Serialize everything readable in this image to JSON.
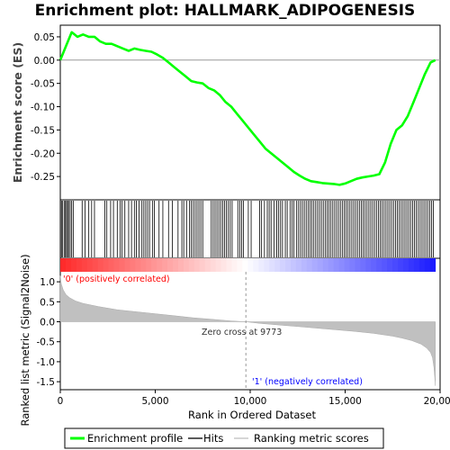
{
  "chart_data": {
    "type": "line",
    "title": "Enrichment plot: HALLMARK_ADIPOGENESIS",
    "xlabel": "Rank in Ordered Dataset",
    "xlim": [
      0,
      20000
    ],
    "x_ticks": [
      0,
      5000,
      10000,
      15000,
      20000
    ],
    "x_tick_labels": [
      "0",
      "5,000",
      "10,000",
      "15,000",
      "20,000"
    ],
    "top_panel": {
      "ylabel": "Enrichment score (ES)",
      "ylim": [
        -0.3,
        0.075
      ],
      "y_ticks": [
        0.05,
        0.0,
        -0.05,
        -0.1,
        -0.15,
        -0.2,
        -0.25
      ],
      "y_tick_labels": [
        "0.05",
        "0.00",
        "-0.05",
        "-0.10",
        "-0.15",
        "-0.20",
        "-0.25"
      ],
      "series": [
        {
          "name": "Enrichment profile",
          "color": "#00ff00",
          "x": [
            0,
            300,
            600,
            900,
            1200,
            1500,
            1800,
            2100,
            2400,
            2700,
            3000,
            3300,
            3600,
            3900,
            4200,
            4500,
            4800,
            5100,
            5400,
            5700,
            6000,
            6300,
            6600,
            6900,
            7200,
            7500,
            7800,
            8100,
            8400,
            8700,
            9000,
            9300,
            9600,
            9900,
            10200,
            10500,
            10800,
            11100,
            11400,
            11700,
            12000,
            12300,
            12600,
            12900,
            13200,
            13500,
            13800,
            14100,
            14400,
            14700,
            15000,
            15300,
            15600,
            15900,
            16200,
            16500,
            16800,
            17100,
            17400,
            17700,
            18000,
            18300,
            18600,
            18900,
            19200,
            19500,
            19750
          ],
          "values": [
            0.0,
            0.03,
            0.06,
            0.05,
            0.055,
            0.05,
            0.05,
            0.04,
            0.035,
            0.035,
            0.03,
            0.025,
            0.02,
            0.025,
            0.022,
            0.02,
            0.018,
            0.012,
            0.005,
            -0.005,
            -0.015,
            -0.025,
            -0.035,
            -0.045,
            -0.048,
            -0.05,
            -0.06,
            -0.065,
            -0.075,
            -0.09,
            -0.1,
            -0.115,
            -0.13,
            -0.145,
            -0.16,
            -0.175,
            -0.19,
            -0.2,
            -0.21,
            -0.22,
            -0.23,
            -0.24,
            -0.248,
            -0.255,
            -0.26,
            -0.262,
            -0.264,
            -0.265,
            -0.266,
            -0.268,
            -0.265,
            -0.26,
            -0.255,
            -0.252,
            -0.25,
            -0.248,
            -0.245,
            -0.22,
            -0.18,
            -0.15,
            -0.14,
            -0.12,
            -0.09,
            -0.06,
            -0.03,
            -0.005,
            0.0
          ]
        }
      ]
    },
    "hits_panel": {
      "name": "Hits",
      "hit_ranks": [
        60,
        110,
        200,
        260,
        330,
        380,
        440,
        520,
        600,
        680,
        1150,
        1300,
        1500,
        1650,
        1800,
        2350,
        2450,
        2650,
        2800,
        3000,
        3150,
        3250,
        3400,
        3600,
        3750,
        3900,
        4000,
        4150,
        4300,
        4400,
        4500,
        4600,
        4700,
        4850,
        4950,
        5200,
        5400,
        5700,
        5900,
        6200,
        6400,
        6500,
        6650,
        6800,
        6900,
        7000,
        7100,
        7200,
        7300,
        7400,
        7500,
        7950,
        8050,
        8150,
        8250,
        8350,
        8450,
        8550,
        8650,
        8750,
        8850,
        8950,
        9050,
        9350,
        9450,
        9550,
        9650,
        9900,
        10050,
        10500,
        10600,
        10750,
        10900,
        11000,
        11100,
        11250,
        11400,
        11500,
        11600,
        11700,
        11850,
        11950,
        12100,
        12200,
        12300,
        12450,
        12550,
        12650,
        12750,
        12850,
        12950,
        13050,
        13150,
        13250,
        13350,
        13450,
        13550,
        13650,
        13750,
        13850,
        13950,
        14050,
        14150,
        14250,
        14350,
        14450,
        14550,
        14650,
        14750,
        14850,
        14950,
        15050,
        15150,
        15250,
        15350,
        15450,
        15550,
        15650,
        15750,
        15850,
        15950,
        16050,
        16150,
        16250,
        16350,
        16450,
        16550,
        16650,
        16750,
        16850,
        16950,
        17050,
        17150,
        17250,
        17350,
        17450,
        17550,
        17650,
        17750,
        17850,
        17950,
        18050,
        18150,
        18250,
        18350,
        18450,
        18550,
        18650,
        18750,
        18850,
        18950,
        19050,
        19150,
        19250,
        19350,
        19450,
        19550,
        19650
      ]
    },
    "bottom_panel": {
      "ylabel": "Ranked list metric (Signal2Noise)",
      "ylim": [
        -1.7,
        1.25
      ],
      "y_ticks": [
        1.0,
        0.5,
        0.0,
        -0.5,
        -1.0,
        -1.5
      ],
      "y_tick_labels": [
        "1.0",
        "0.5",
        "0.0",
        "-0.5",
        "-1.0",
        "-1.5"
      ],
      "series": [
        {
          "name": "Ranking metric scores",
          "color": "#c0c0c0",
          "x": [
            0,
            50,
            150,
            300,
            500,
            800,
            1200,
            2000,
            3000,
            4000,
            5000,
            6000,
            7000,
            8000,
            9000,
            9773,
            10500,
            11500,
            12500,
            13500,
            14500,
            15500,
            16500,
            17500,
            18000,
            18500,
            19000,
            19300,
            19500,
            19600,
            19680,
            19740,
            19750
          ],
          "values": [
            1.15,
            0.95,
            0.8,
            0.68,
            0.6,
            0.52,
            0.46,
            0.38,
            0.3,
            0.25,
            0.2,
            0.15,
            0.1,
            0.06,
            0.02,
            0.0,
            -0.04,
            -0.08,
            -0.12,
            -0.16,
            -0.2,
            -0.24,
            -0.29,
            -0.36,
            -0.41,
            -0.47,
            -0.56,
            -0.66,
            -0.77,
            -0.9,
            -1.15,
            -1.5,
            -1.6
          ]
        }
      ],
      "zero_cross_label": "Zero cross at 9773",
      "zero_cross": 9773,
      "pos_label": "'0' (positively correlated)",
      "neg_label": "'1' (negatively correlated)",
      "pos_color": "#ff0000",
      "neg_color": "#0000ff"
    },
    "legend": [
      {
        "name": "Enrichment profile",
        "color": "#00ff00"
      },
      {
        "name": "Hits",
        "color": "#000000"
      },
      {
        "name": "Ranking metric scores",
        "color": "#c0c0c0"
      }
    ],
    "legend_placement": "bottom"
  }
}
